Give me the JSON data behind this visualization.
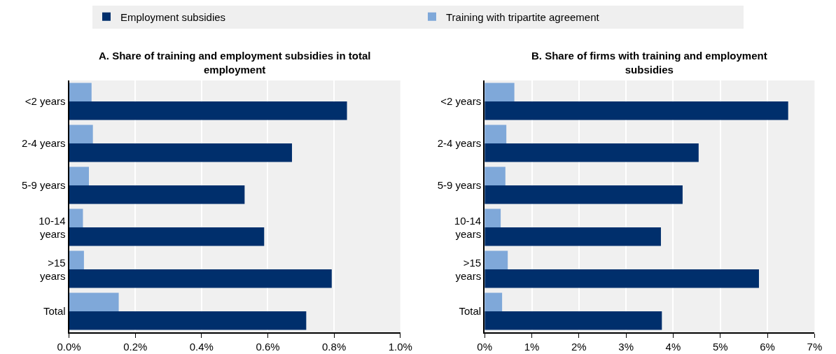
{
  "chart_data": [
    {
      "type": "bar",
      "orientation": "horizontal",
      "title": "A. Share of training and employment subsidies in total\nemployment",
      "categories": [
        "<2 years",
        "2-4 years",
        "5-9 years",
        "10-14\nyears",
        ">15\nyears",
        "Total"
      ],
      "series": [
        {
          "name": "Employment subsidies",
          "color": "#002f6c",
          "values": [
            0.839,
            0.673,
            0.53,
            0.589,
            0.793,
            0.716
          ]
        },
        {
          "name": "Training with tripartite agreement",
          "color": "#7fa8d9",
          "values": [
            0.068,
            0.072,
            0.06,
            0.042,
            0.045,
            0.15
          ]
        }
      ],
      "xlim": [
        0,
        1.0
      ],
      "xticks": [
        {
          "value": 0,
          "label": "0.0%"
        },
        {
          "value": 0.2,
          "label": "0.2%"
        },
        {
          "value": 0.4,
          "label": "0.4%"
        },
        {
          "value": 0.6,
          "label": "0.6%"
        },
        {
          "value": 0.8,
          "label": "0.8%"
        },
        {
          "value": 1.0,
          "label": "1.0%"
        }
      ],
      "grid": "x",
      "legend": "top"
    },
    {
      "type": "bar",
      "orientation": "horizontal",
      "title": "B. Share of firms with training and employment\nsubsidies",
      "categories": [
        "<2 years",
        "2-4 years",
        "5-9 years",
        "10-14\nyears",
        ">15\nyears",
        "Total"
      ],
      "series": [
        {
          "color": "#002f6c",
          "values": [
            6.44,
            4.54,
            4.2,
            3.74,
            5.82,
            3.76
          ]
        },
        {
          "color": "#7fa8d9",
          "values": [
            0.63,
            0.46,
            0.44,
            0.34,
            0.49,
            0.37
          ]
        }
      ],
      "xlim": [
        0,
        7
      ],
      "xticks": [
        {
          "value": 0,
          "label": "0%"
        },
        {
          "value": 1,
          "label": "1%"
        },
        {
          "value": 2,
          "label": "2%"
        },
        {
          "value": 3,
          "label": "3%"
        },
        {
          "value": 4,
          "label": "4%"
        },
        {
          "value": 5,
          "label": "5%"
        },
        {
          "value": 6,
          "label": "6%"
        },
        {
          "value": 7,
          "label": "7%"
        }
      ],
      "grid": "x"
    }
  ]
}
